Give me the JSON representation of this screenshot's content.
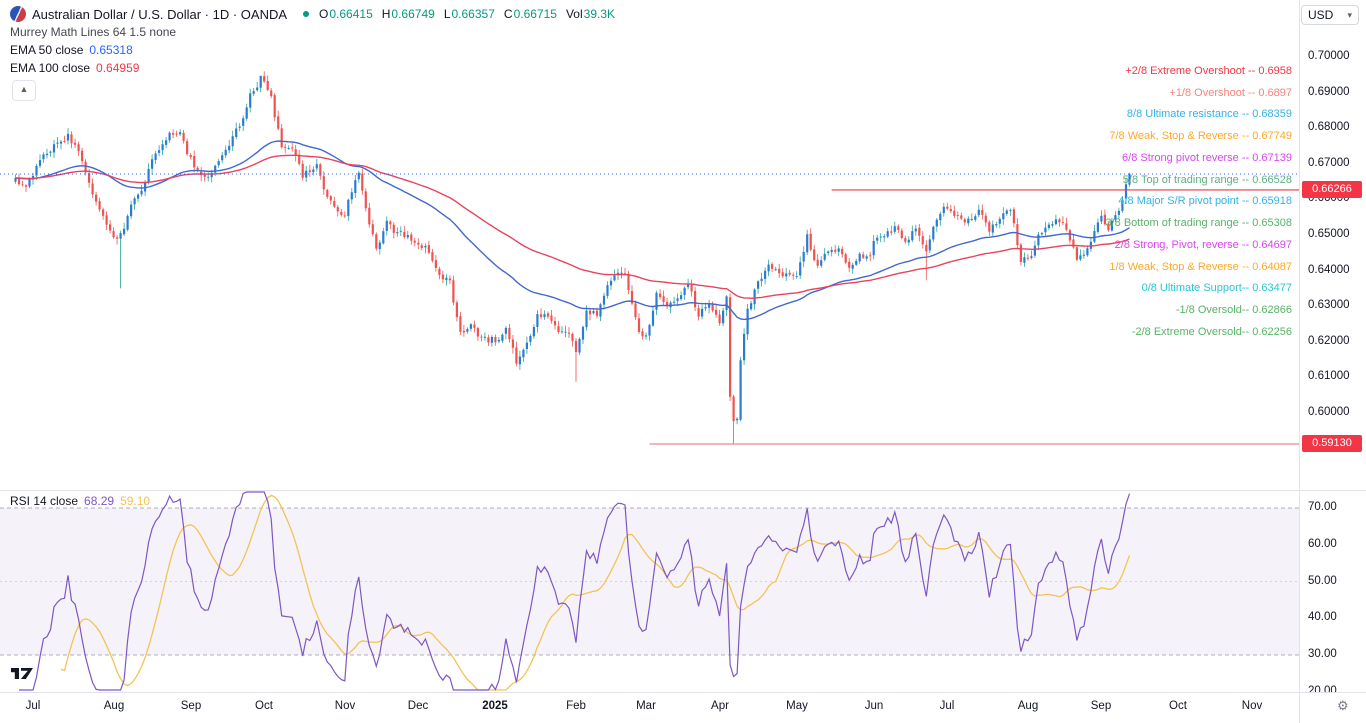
{
  "header": {
    "symbol_title": "Australian Dollar / U.S. Dollar · 1D · OANDA",
    "ohlc": [
      {
        "label": "O",
        "value": "0.66415"
      },
      {
        "label": "H",
        "value": "0.66749"
      },
      {
        "label": "L",
        "value": "0.66357"
      },
      {
        "label": "C",
        "value": "0.66715"
      },
      {
        "label": "Vol",
        "value": "39.3K"
      }
    ],
    "indicator_murrey": "Murrey Math Lines 64 1.5 none",
    "ema50_label": "EMA 50 close",
    "ema50_value": "0.65318",
    "ema100_label": "EMA 100 close",
    "ema100_value": "0.64959",
    "currency": "USD"
  },
  "rsi_legend": {
    "label": "RSI 14 close",
    "value_main": "68.29",
    "value_ma": "59.10"
  },
  "colors": {
    "up_body": "#2c7bd2",
    "up_wick": "#26a69a",
    "down_body": "#ef5350",
    "down_wick": "#ef5350",
    "ema50": "#4068cf",
    "ema100": "#e8435f",
    "ema50_text": "#2962ff",
    "ema100_text": "#f23645",
    "ohlc_value": "#089981",
    "rsi_line": "#7e57c2",
    "rsi_ma_line": "#f4c355",
    "rsi_band_fill": "rgba(126,87,194,0.08)",
    "rsi_band_line": "#9598a1",
    "rsi_mid_line": "#c9cbd1",
    "last_price_line": "#2962ff",
    "badge_bg": "#f23645",
    "axis_text": "#131722"
  },
  "chart_data": {
    "type": "candlestick",
    "title": "Australian Dollar / U.S. Dollar, 1D, OANDA",
    "n_candles": 319,
    "ylim": [
      0.578,
      0.716
    ],
    "anchors": [
      [
        0,
        0.6655
      ],
      [
        3,
        0.664
      ],
      [
        8,
        0.6725
      ],
      [
        13,
        0.676
      ],
      [
        15,
        0.6785
      ],
      [
        18,
        0.673
      ],
      [
        21,
        0.664
      ],
      [
        25,
        0.6545
      ],
      [
        28,
        0.65
      ],
      [
        30,
        0.6498
      ],
      [
        33,
        0.658
      ],
      [
        36,
        0.663
      ],
      [
        40,
        0.673
      ],
      [
        44,
        0.679
      ],
      [
        47,
        0.678
      ],
      [
        50,
        0.671
      ],
      [
        53,
        0.666
      ],
      [
        55,
        0.666
      ],
      [
        58,
        0.67
      ],
      [
        61,
        0.675
      ],
      [
        64,
        0.681
      ],
      [
        67,
        0.689
      ],
      [
        70,
        0.6938
      ],
      [
        73,
        0.689
      ],
      [
        76,
        0.674
      ],
      [
        79,
        0.675
      ],
      [
        82,
        0.667
      ],
      [
        86,
        0.669
      ],
      [
        89,
        0.66
      ],
      [
        92,
        0.657
      ],
      [
        94,
        0.656
      ],
      [
        96,
        0.662
      ],
      [
        98,
        0.668
      ],
      [
        100,
        0.657
      ],
      [
        103,
        0.6455
      ],
      [
        106,
        0.653
      ],
      [
        109,
        0.6505
      ],
      [
        112,
        0.6495
      ],
      [
        115,
        0.648
      ],
      [
        118,
        0.645
      ],
      [
        121,
        0.638
      ],
      [
        124,
        0.6365
      ],
      [
        127,
        0.623
      ],
      [
        130,
        0.6245
      ],
      [
        133,
        0.621
      ],
      [
        137,
        0.6205
      ],
      [
        140,
        0.6235
      ],
      [
        143,
        0.6145
      ],
      [
        146,
        0.6195
      ],
      [
        149,
        0.627
      ],
      [
        152,
        0.628
      ],
      [
        155,
        0.6235
      ],
      [
        158,
        0.6215
      ],
      [
        160,
        0.618
      ],
      [
        163,
        0.628
      ],
      [
        166,
        0.628
      ],
      [
        169,
        0.635
      ],
      [
        171,
        0.6395
      ],
      [
        174,
        0.64
      ],
      [
        175,
        0.6355
      ],
      [
        178,
        0.623
      ],
      [
        180,
        0.622
      ],
      [
        183,
        0.633
      ],
      [
        186,
        0.629
      ],
      [
        189,
        0.6325
      ],
      [
        192,
        0.636
      ],
      [
        195,
        0.628
      ],
      [
        198,
        0.63
      ],
      [
        201,
        0.625
      ],
      [
        203,
        0.633
      ],
      [
        204,
        0.6045
      ],
      [
        205,
        0.598
      ],
      [
        206,
        0.5985
      ],
      [
        207,
        0.615
      ],
      [
        209,
        0.629
      ],
      [
        212,
        0.637
      ],
      [
        215,
        0.6415
      ],
      [
        218,
        0.6385
      ],
      [
        221,
        0.639
      ],
      [
        223,
        0.6385
      ],
      [
        226,
        0.6495
      ],
      [
        229,
        0.641
      ],
      [
        232,
        0.646
      ],
      [
        235,
        0.6455
      ],
      [
        238,
        0.641
      ],
      [
        241,
        0.6445
      ],
      [
        244,
        0.6435
      ],
      [
        245,
        0.649
      ],
      [
        248,
        0.65
      ],
      [
        251,
        0.652
      ],
      [
        254,
        0.6485
      ],
      [
        257,
        0.651
      ],
      [
        260,
        0.6455
      ],
      [
        263,
        0.655
      ],
      [
        265,
        0.658
      ],
      [
        266,
        0.658
      ],
      [
        269,
        0.6555
      ],
      [
        272,
        0.654
      ],
      [
        275,
        0.657
      ],
      [
        278,
        0.651
      ],
      [
        281,
        0.6555
      ],
      [
        284,
        0.6575
      ],
      [
        287,
        0.643
      ],
      [
        289,
        0.6425
      ],
      [
        292,
        0.65
      ],
      [
        295,
        0.652
      ],
      [
        298,
        0.6545
      ],
      [
        301,
        0.649
      ],
      [
        303,
        0.643
      ],
      [
        306,
        0.6465
      ],
      [
        309,
        0.6535
      ],
      [
        310,
        0.6545
      ],
      [
        312,
        0.652
      ],
      [
        314,
        0.6555
      ],
      [
        316,
        0.66
      ],
      [
        317,
        0.664
      ],
      [
        318,
        0.66715
      ]
    ],
    "specials": {
      "30": {
        "low": 0.635
      },
      "70": {
        "high": 0.6942
      },
      "143": {
        "low": 0.6131
      },
      "160": {
        "low": 0.6088
      },
      "205": {
        "low": 0.5913
      },
      "260": {
        "low": 0.6373
      },
      "318": {
        "open": 0.66415,
        "high": 0.66749,
        "low": 0.66357,
        "close": 0.66715
      }
    },
    "ema_periods": [
      50,
      100
    ],
    "price_axis": {
      "ticks": [
        {
          "label": "0.70000",
          "value": 0.7
        },
        {
          "label": "0.69000",
          "value": 0.69
        },
        {
          "label": "0.68000",
          "value": 0.68
        },
        {
          "label": "0.67000",
          "value": 0.67
        },
        {
          "label": "0.66000",
          "value": 0.66
        },
        {
          "label": "0.65000",
          "value": 0.65
        },
        {
          "label": "0.64000",
          "value": 0.64
        },
        {
          "label": "0.63000",
          "value": 0.63
        },
        {
          "label": "0.62000",
          "value": 0.62
        },
        {
          "label": "0.61000",
          "value": 0.61
        },
        {
          "label": "0.60000",
          "value": 0.6
        }
      ]
    },
    "time_axis": {
      "ticks": [
        {
          "label": "Jul",
          "index": 5,
          "bold": false
        },
        {
          "label": "Aug",
          "index": 28,
          "bold": false
        },
        {
          "label": "Sep",
          "index": 50,
          "bold": false
        },
        {
          "label": "Oct",
          "index": 71,
          "bold": false
        },
        {
          "label": "Nov",
          "index": 94,
          "bold": false
        },
        {
          "label": "Dec",
          "index": 115,
          "bold": false
        },
        {
          "label": "2025",
          "index": 137,
          "bold": true
        },
        {
          "label": "Feb",
          "index": 160,
          "bold": false
        },
        {
          "label": "Mar",
          "index": 180,
          "bold": false
        },
        {
          "label": "Apr",
          "index": 201,
          "bold": false
        },
        {
          "label": "May",
          "index": 223,
          "bold": false
        },
        {
          "label": "Jun",
          "index": 245,
          "bold": false
        },
        {
          "label": "Jul",
          "index": 266,
          "bold": false
        },
        {
          "label": "Aug",
          "index": 289,
          "bold": false
        },
        {
          "label": "Sep",
          "index": 310,
          "bold": false
        },
        {
          "label": "Oct",
          "index": 332,
          "bold": false
        },
        {
          "label": "Nov",
          "index": 353,
          "bold": false
        }
      ]
    },
    "murrey_levels": [
      {
        "label": "+2/8 Extreme Overshoot --  0.6958",
        "price": 0.6958,
        "color": "#f23645"
      },
      {
        "label": "+1/8 Overshoot --  0.6897",
        "price": 0.6897,
        "color": "#f7827e"
      },
      {
        "label": "8/8 Ultimate resistance --  0.68359",
        "price": 0.68359,
        "color": "#35b1e6"
      },
      {
        "label": "7/8 Weak, Stop & Reverse --  0.67749",
        "price": 0.67749,
        "color": "#ffa726"
      },
      {
        "label": "6/8 Strong pivot reverse --  0.67139",
        "price": 0.67139,
        "color": "#d946ef"
      },
      {
        "label": "5/8 Top of trading range --  0.66528",
        "price": 0.66528,
        "color": "#5faf7f"
      },
      {
        "label": "4/8 Major S/R pivot point --  0.65918",
        "price": 0.65918,
        "color": "#35b1e6"
      },
      {
        "label": "3/8 Bottom of trading range --  0.65308",
        "price": 0.65308,
        "color": "#58b368"
      },
      {
        "label": "2/8 Strong, Pivot, reverse --  0.64697",
        "price": 0.64697,
        "color": "#d946ef"
      },
      {
        "label": "1/8 Weak, Stop & Reverse --  0.64087",
        "price": 0.64087,
        "color": "#ffa726"
      },
      {
        "label": "0/8 Ultimate Support--  0.63477",
        "price": 0.63477,
        "color": "#26c6da"
      },
      {
        "label": "-1/8 Oversold--  0.62866",
        "price": 0.62866,
        "color": "#58b368"
      },
      {
        "label": "-2/8 Extreme Oversold--  0.62256",
        "price": 0.62256,
        "color": "#58b368"
      }
    ],
    "rays": [
      {
        "price": 0.66266,
        "from_index": 233,
        "color": "#f23645"
      },
      {
        "price": 0.5913,
        "from_index": 181,
        "color": "#ef8791"
      }
    ],
    "badges": [
      {
        "label": "0.66266",
        "price": 0.66266
      },
      {
        "label": "0.59130",
        "price": 0.5913
      }
    ],
    "last_price_line": {
      "price": 0.66715
    },
    "rsi": {
      "period": 14,
      "ma_period": 14,
      "band": [
        30,
        70
      ],
      "last_value": 68.29,
      "last_ma": 59.1,
      "ticks": [
        {
          "label": "70.00",
          "value": 70
        },
        {
          "label": "60.00",
          "value": 60
        },
        {
          "label": "50.00",
          "value": 50
        },
        {
          "label": "40.00",
          "value": 40
        },
        {
          "label": "30.00",
          "value": 30
        },
        {
          "label": "20.00",
          "value": 20
        }
      ]
    }
  }
}
